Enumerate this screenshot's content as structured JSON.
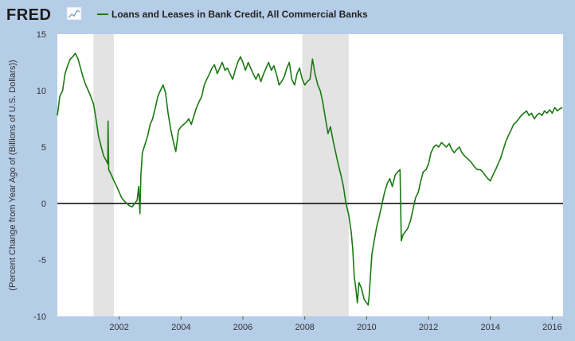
{
  "logo": {
    "text": "FRED"
  },
  "colors": {
    "background": "#b5cde7",
    "plot_background": "#ffffff",
    "series": "#1a7a12",
    "recession": "#e3e3e3",
    "zero_line": "#000000"
  },
  "chart_data": {
    "type": "line",
    "title": "",
    "xlabel": "",
    "ylabel": "(Percent Change from Year Ago of (Billions of U.S. Dollars))",
    "xlim": [
      2000.0,
      2016.35
    ],
    "ylim": [
      -10,
      15
    ],
    "x_ticks": [
      2002,
      2004,
      2006,
      2008,
      2010,
      2012,
      2014,
      2016
    ],
    "y_ticks": [
      -10,
      -5,
      0,
      5,
      10,
      15
    ],
    "grid": false,
    "legend": {
      "placement": "top-left",
      "entries": [
        "Loans and Leases in Bank Credit, All Commercial Banks"
      ]
    },
    "recessions": [
      [
        2001.17,
        2001.83
      ],
      [
        2007.92,
        2009.42
      ]
    ],
    "series": [
      {
        "name": "Loans and Leases in Bank Credit, All Commercial Banks",
        "points": [
          [
            2000.0,
            7.8
          ],
          [
            2000.08,
            9.5
          ],
          [
            2000.17,
            10.0
          ],
          [
            2000.25,
            11.5
          ],
          [
            2000.33,
            12.2
          ],
          [
            2000.42,
            12.8
          ],
          [
            2000.5,
            13.0
          ],
          [
            2000.58,
            13.3
          ],
          [
            2000.67,
            12.8
          ],
          [
            2000.75,
            12.0
          ],
          [
            2000.83,
            11.2
          ],
          [
            2000.92,
            10.5
          ],
          [
            2001.0,
            10.0
          ],
          [
            2001.08,
            9.5
          ],
          [
            2001.17,
            8.8
          ],
          [
            2001.25,
            7.5
          ],
          [
            2001.33,
            6.0
          ],
          [
            2001.42,
            5.0
          ],
          [
            2001.5,
            4.2
          ],
          [
            2001.58,
            3.8
          ],
          [
            2001.63,
            3.5
          ],
          [
            2001.64,
            7.3
          ],
          [
            2001.66,
            3.0
          ],
          [
            2001.75,
            2.5
          ],
          [
            2001.83,
            2.0
          ],
          [
            2001.92,
            1.5
          ],
          [
            2002.0,
            1.0
          ],
          [
            2002.08,
            0.5
          ],
          [
            2002.17,
            0.2
          ],
          [
            2002.25,
            0.0
          ],
          [
            2002.33,
            -0.2
          ],
          [
            2002.42,
            -0.3
          ],
          [
            2002.5,
            0.0
          ],
          [
            2002.58,
            0.3
          ],
          [
            2002.63,
            1.5
          ],
          [
            2002.67,
            -0.9
          ],
          [
            2002.7,
            2.5
          ],
          [
            2002.75,
            4.5
          ],
          [
            2002.83,
            5.2
          ],
          [
            2002.92,
            6.0
          ],
          [
            2003.0,
            7.0
          ],
          [
            2003.08,
            7.5
          ],
          [
            2003.17,
            8.5
          ],
          [
            2003.25,
            9.5
          ],
          [
            2003.33,
            10.0
          ],
          [
            2003.42,
            10.5
          ],
          [
            2003.5,
            9.8
          ],
          [
            2003.58,
            8.0
          ],
          [
            2003.67,
            6.5
          ],
          [
            2003.75,
            5.5
          ],
          [
            2003.83,
            4.6
          ],
          [
            2003.92,
            6.5
          ],
          [
            2004.0,
            6.8
          ],
          [
            2004.08,
            7.0
          ],
          [
            2004.17,
            7.2
          ],
          [
            2004.25,
            7.5
          ],
          [
            2004.33,
            7.0
          ],
          [
            2004.42,
            7.8
          ],
          [
            2004.5,
            8.5
          ],
          [
            2004.58,
            9.0
          ],
          [
            2004.67,
            9.5
          ],
          [
            2004.75,
            10.5
          ],
          [
            2004.83,
            11.0
          ],
          [
            2004.92,
            11.5
          ],
          [
            2005.0,
            12.0
          ],
          [
            2005.08,
            12.3
          ],
          [
            2005.17,
            11.5
          ],
          [
            2005.25,
            12.0
          ],
          [
            2005.33,
            12.5
          ],
          [
            2005.42,
            11.8
          ],
          [
            2005.5,
            12.0
          ],
          [
            2005.58,
            11.5
          ],
          [
            2005.67,
            11.0
          ],
          [
            2005.75,
            11.8
          ],
          [
            2005.83,
            12.5
          ],
          [
            2005.92,
            13.0
          ],
          [
            2006.0,
            12.5
          ],
          [
            2006.08,
            11.8
          ],
          [
            2006.17,
            12.5
          ],
          [
            2006.25,
            12.0
          ],
          [
            2006.33,
            11.5
          ],
          [
            2006.42,
            11.0
          ],
          [
            2006.5,
            11.5
          ],
          [
            2006.58,
            10.8
          ],
          [
            2006.67,
            11.5
          ],
          [
            2006.75,
            12.0
          ],
          [
            2006.83,
            12.5
          ],
          [
            2006.92,
            11.8
          ],
          [
            2007.0,
            12.2
          ],
          [
            2007.08,
            11.5
          ],
          [
            2007.17,
            10.5
          ],
          [
            2007.25,
            10.8
          ],
          [
            2007.33,
            11.2
          ],
          [
            2007.42,
            12.0
          ],
          [
            2007.5,
            12.5
          ],
          [
            2007.58,
            11.0
          ],
          [
            2007.67,
            10.5
          ],
          [
            2007.75,
            11.5
          ],
          [
            2007.83,
            12.0
          ],
          [
            2007.92,
            11.0
          ],
          [
            2008.0,
            10.5
          ],
          [
            2008.08,
            10.8
          ],
          [
            2008.17,
            11.0
          ],
          [
            2008.25,
            12.8
          ],
          [
            2008.33,
            11.5
          ],
          [
            2008.42,
            10.5
          ],
          [
            2008.5,
            10.0
          ],
          [
            2008.58,
            9.0
          ],
          [
            2008.67,
            7.5
          ],
          [
            2008.75,
            6.2
          ],
          [
            2008.83,
            6.8
          ],
          [
            2008.92,
            5.5
          ],
          [
            2009.0,
            4.5
          ],
          [
            2009.08,
            3.5
          ],
          [
            2009.17,
            2.5
          ],
          [
            2009.25,
            1.5
          ],
          [
            2009.33,
            0.0
          ],
          [
            2009.42,
            -1.0
          ],
          [
            2009.5,
            -2.5
          ],
          [
            2009.55,
            -4.0
          ],
          [
            2009.6,
            -6.5
          ],
          [
            2009.65,
            -7.5
          ],
          [
            2009.7,
            -8.8
          ],
          [
            2009.75,
            -7.0
          ],
          [
            2009.83,
            -7.5
          ],
          [
            2009.92,
            -8.5
          ],
          [
            2010.0,
            -8.8
          ],
          [
            2010.05,
            -9.0
          ],
          [
            2010.08,
            -8.2
          ],
          [
            2010.17,
            -4.5
          ],
          [
            2010.25,
            -3.2
          ],
          [
            2010.33,
            -2.0
          ],
          [
            2010.42,
            -1.0
          ],
          [
            2010.5,
            0.0
          ],
          [
            2010.58,
            1.0
          ],
          [
            2010.67,
            1.8
          ],
          [
            2010.75,
            2.2
          ],
          [
            2010.83,
            1.5
          ],
          [
            2010.92,
            2.5
          ],
          [
            2011.0,
            2.8
          ],
          [
            2011.08,
            3.0
          ],
          [
            2011.12,
            -3.3
          ],
          [
            2011.17,
            -2.8
          ],
          [
            2011.25,
            -2.5
          ],
          [
            2011.33,
            -2.2
          ],
          [
            2011.42,
            -1.5
          ],
          [
            2011.5,
            -0.5
          ],
          [
            2011.58,
            0.5
          ],
          [
            2011.67,
            1.0
          ],
          [
            2011.75,
            2.0
          ],
          [
            2011.83,
            2.8
          ],
          [
            2011.92,
            3.0
          ],
          [
            2012.0,
            3.5
          ],
          [
            2012.08,
            4.5
          ],
          [
            2012.17,
            5.0
          ],
          [
            2012.25,
            5.2
          ],
          [
            2012.33,
            5.0
          ],
          [
            2012.42,
            5.4
          ],
          [
            2012.5,
            5.2
          ],
          [
            2012.58,
            5.0
          ],
          [
            2012.67,
            5.3
          ],
          [
            2012.75,
            4.8
          ],
          [
            2012.83,
            4.5
          ],
          [
            2012.92,
            4.8
          ],
          [
            2013.0,
            5.0
          ],
          [
            2013.08,
            4.5
          ],
          [
            2013.17,
            4.2
          ],
          [
            2013.25,
            4.0
          ],
          [
            2013.33,
            3.8
          ],
          [
            2013.42,
            3.5
          ],
          [
            2013.5,
            3.2
          ],
          [
            2013.58,
            3.0
          ],
          [
            2013.67,
            3.0
          ],
          [
            2013.75,
            2.8
          ],
          [
            2013.83,
            2.5
          ],
          [
            2013.92,
            2.2
          ],
          [
            2014.0,
            2.0
          ],
          [
            2014.08,
            2.5
          ],
          [
            2014.17,
            3.0
          ],
          [
            2014.25,
            3.5
          ],
          [
            2014.33,
            4.0
          ],
          [
            2014.42,
            4.8
          ],
          [
            2014.5,
            5.5
          ],
          [
            2014.58,
            6.0
          ],
          [
            2014.67,
            6.5
          ],
          [
            2014.75,
            7.0
          ],
          [
            2014.83,
            7.2
          ],
          [
            2014.92,
            7.5
          ],
          [
            2015.0,
            7.8
          ],
          [
            2015.08,
            8.0
          ],
          [
            2015.17,
            8.2
          ],
          [
            2015.25,
            7.8
          ],
          [
            2015.33,
            8.0
          ],
          [
            2015.42,
            7.5
          ],
          [
            2015.5,
            7.8
          ],
          [
            2015.58,
            8.0
          ],
          [
            2015.67,
            7.8
          ],
          [
            2015.75,
            8.2
          ],
          [
            2015.83,
            8.0
          ],
          [
            2015.92,
            8.3
          ],
          [
            2016.0,
            8.0
          ],
          [
            2016.08,
            8.5
          ],
          [
            2016.17,
            8.2
          ],
          [
            2016.25,
            8.4
          ],
          [
            2016.33,
            8.5
          ]
        ]
      }
    ]
  }
}
